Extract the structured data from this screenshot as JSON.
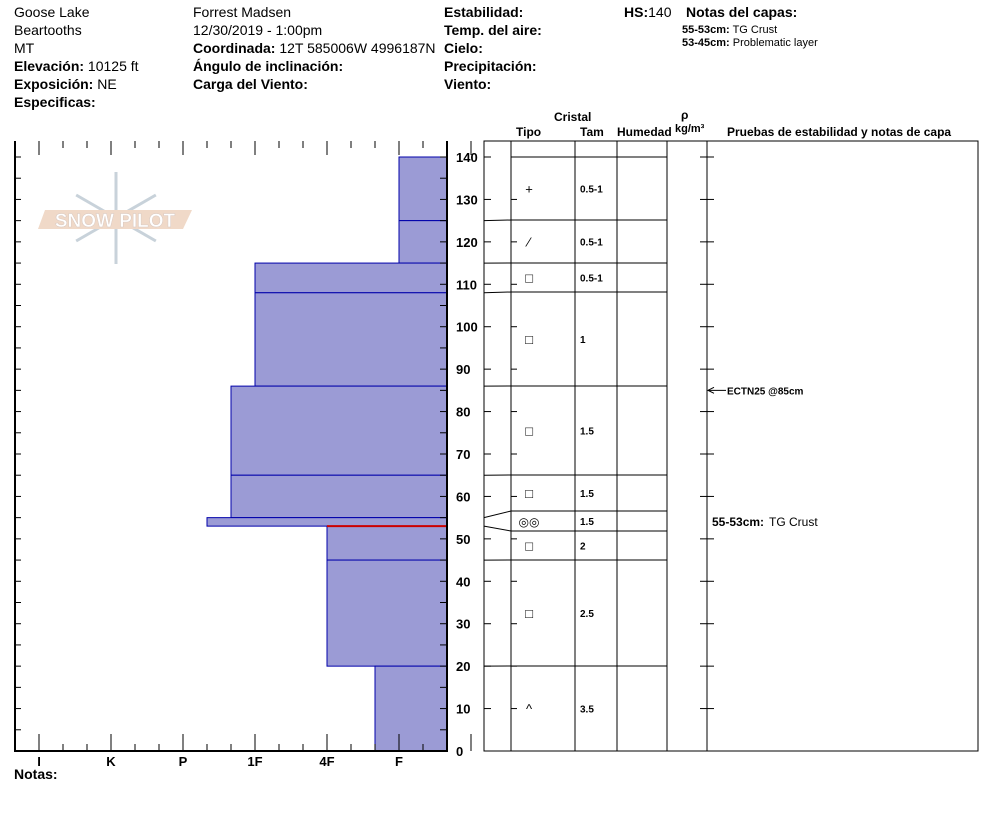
{
  "header": {
    "location": "Goose Lake",
    "range": "Beartooths",
    "state": "MT",
    "elevation_label": "Elevación:",
    "elevation": "10125 ft",
    "aspect_label": "Exposición:",
    "aspect": "NE",
    "specifics_label": "Especificas:",
    "observer": "Forrest Madsen",
    "datetime": "12/30/2019 - 1:00pm",
    "coord_label": "Coordinada:",
    "coord": "12T 585006W 4996187N",
    "slope_label": "Ángulo de inclinación:",
    "wind_load_label": "Carga del Viento:",
    "stability_label": "Estabilidad:",
    "air_temp_label": "Temp. del aire:",
    "sky_label": "Cielo:",
    "precip_label": "Precipitación:",
    "wind_label": "Viento:",
    "hs_label": "HS:",
    "hs": "140",
    "layer_notes_label": "Notas del capas:",
    "layer_notes": [
      {
        "range": "55-53cm:",
        "text": "TG Crust"
      },
      {
        "range": "53-45cm:",
        "text": "Problematic layer"
      }
    ]
  },
  "logo_text": "SNOW PILOT",
  "table_headers": {
    "cristal": "Cristal",
    "tipo": "Tipo",
    "tam": "Tam",
    "humedad": "Humedad",
    "rho": "ρ",
    "density_unit": "kg/m³",
    "tests": "Pruebas de estabilidad y notas de capa"
  },
  "notes_label": "Notas:",
  "chart_data": {
    "type": "bar",
    "ylabel": "",
    "xlabel": "",
    "ylim": [
      0,
      140
    ],
    "y_ticks": [
      "0",
      "10",
      "20",
      "30",
      "40",
      "50",
      "60",
      "70",
      "80",
      "90",
      "100",
      "110",
      "120",
      "130",
      "140"
    ],
    "x_tick_labels": [
      "I",
      "K",
      "P",
      "1F",
      "4F",
      "F"
    ],
    "fill_color": "#9b9bd5",
    "edge_color": "#0000aa",
    "marker_color": "#cc0000",
    "layers": [
      {
        "top": 140,
        "bottom": 125,
        "hardness": "F"
      },
      {
        "top": 125,
        "bottom": 115,
        "hardness": "F"
      },
      {
        "top": 115,
        "bottom": 108,
        "hardness": "1F"
      },
      {
        "top": 108,
        "bottom": 86,
        "hardness": "1F"
      },
      {
        "top": 86,
        "bottom": 65,
        "hardness": "1F+"
      },
      {
        "top": 65,
        "bottom": 55,
        "hardness": "1F+"
      },
      {
        "top": 55,
        "bottom": 53,
        "hardness": "P-"
      },
      {
        "top": 53,
        "bottom": 45,
        "hardness": "4F"
      },
      {
        "top": 45,
        "bottom": 20,
        "hardness": "4F"
      },
      {
        "top": 20,
        "bottom": 0,
        "hardness": "F+"
      }
    ],
    "red_marker_depth": 53,
    "crystals": [
      {
        "type": "+",
        "size": "0.5-1"
      },
      {
        "type": "⁄",
        "size": "0.5-1"
      },
      {
        "type": "□",
        "size": "0.5-1"
      },
      {
        "type": "□",
        "size": "1"
      },
      {
        "type": "□",
        "size": "1.5"
      },
      {
        "type": "□",
        "size": "1.5"
      },
      {
        "type": "◎◎",
        "size": "1.5"
      },
      {
        "type": "□",
        "size": "2"
      },
      {
        "type": "□",
        "size": "2.5"
      },
      {
        "type": "^",
        "size": "3.5"
      }
    ],
    "tests": [
      {
        "text": "ECTN25 @85cm",
        "depth": 85
      }
    ],
    "table_notes": [
      {
        "range": "55-53cm:",
        "text": "TG Crust",
        "depth": 54
      }
    ]
  }
}
